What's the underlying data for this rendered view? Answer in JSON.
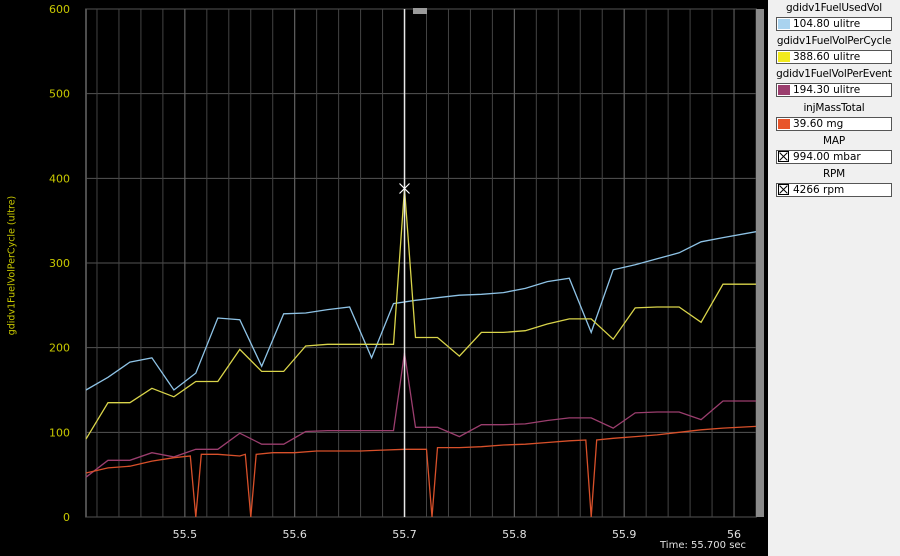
{
  "chart_data": {
    "type": "line",
    "ylabel": "gdidv1FuelVolPerCycle (ultre)",
    "ylim": [
      0,
      600
    ],
    "xlim": [
      55.41,
      56.02
    ],
    "y_ticks": [
      0,
      100,
      200,
      300,
      400,
      500,
      600
    ],
    "x_ticks": [
      55.5,
      55.6,
      55.7,
      55.8,
      55.9,
      56
    ],
    "x_tick_labels": [
      "55.5",
      "55.6",
      "55.7",
      "55.8",
      "55.9",
      "56"
    ],
    "grid": true,
    "cursor_x": 55.7,
    "time_readout": "Time: 55.700 sec",
    "series": [
      {
        "name": "gdidv1FuelUsedVol",
        "color": "#8ec3e6",
        "x": [
          55.41,
          55.43,
          55.45,
          55.47,
          55.49,
          55.51,
          55.53,
          55.55,
          55.57,
          55.59,
          55.61,
          55.63,
          55.65,
          55.67,
          55.69,
          55.71,
          55.73,
          55.75,
          55.77,
          55.79,
          55.81,
          55.83,
          55.85,
          55.87,
          55.89,
          55.91,
          55.93,
          55.95,
          55.97,
          55.99,
          56.02
        ],
        "y": [
          150,
          165,
          183,
          188,
          150,
          170,
          235,
          233,
          178,
          240,
          241,
          245,
          248,
          188,
          252,
          256,
          259,
          262,
          263,
          265,
          270,
          278,
          282,
          218,
          292,
          298,
          305,
          312,
          325,
          330,
          337
        ]
      },
      {
        "name": "gdidv1FuelVolPerCycle",
        "color": "#d9d44a",
        "x": [
          55.41,
          55.43,
          55.45,
          55.47,
          55.49,
          55.51,
          55.53,
          55.55,
          55.57,
          55.59,
          55.61,
          55.63,
          55.65,
          55.67,
          55.69,
          55.7,
          55.71,
          55.73,
          55.75,
          55.77,
          55.79,
          55.81,
          55.83,
          55.85,
          55.87,
          55.89,
          55.91,
          55.93,
          55.95,
          55.97,
          55.99,
          56.02
        ],
        "y": [
          92,
          135,
          135,
          152,
          142,
          160,
          160,
          198,
          172,
          172,
          202,
          204,
          204,
          204,
          204,
          388,
          212,
          212,
          190,
          218,
          218,
          220,
          228,
          234,
          234,
          210,
          247,
          248,
          248,
          230,
          275,
          275
        ]
      },
      {
        "name": "gdidv1FuelVolPerEvent",
        "color": "#9b3e6e",
        "x": [
          55.41,
          55.43,
          55.45,
          55.47,
          55.49,
          55.51,
          55.53,
          55.55,
          55.57,
          55.59,
          55.61,
          55.63,
          55.65,
          55.67,
          55.69,
          55.7,
          55.71,
          55.73,
          55.75,
          55.77,
          55.79,
          55.81,
          55.83,
          55.85,
          55.87,
          55.89,
          55.91,
          55.93,
          55.95,
          55.97,
          55.99,
          56.02
        ],
        "y": [
          47,
          67,
          67,
          76,
          71,
          80,
          80,
          99,
          86,
          86,
          101,
          102,
          102,
          102,
          102,
          194,
          106,
          106,
          95,
          109,
          109,
          110,
          114,
          117,
          117,
          105,
          123,
          124,
          124,
          115,
          137,
          137
        ]
      },
      {
        "name": "injMassTotal",
        "color": "#d8502a",
        "x": [
          55.41,
          55.43,
          55.45,
          55.47,
          55.49,
          55.505,
          55.51,
          55.515,
          55.53,
          55.55,
          55.555,
          55.56,
          55.565,
          55.58,
          55.6,
          55.62,
          55.64,
          55.66,
          55.68,
          55.7,
          55.72,
          55.725,
          55.73,
          55.735,
          55.75,
          55.77,
          55.79,
          55.81,
          55.83,
          55.85,
          55.865,
          55.87,
          55.875,
          55.89,
          55.91,
          55.93,
          55.95,
          55.97,
          55.99,
          56.02
        ],
        "y": [
          52,
          58,
          60,
          66,
          70,
          72,
          0,
          74,
          74,
          72,
          74,
          0,
          74,
          76,
          76,
          78,
          78,
          78,
          79,
          80,
          80,
          0,
          82,
          82,
          82,
          83,
          85,
          86,
          88,
          90,
          91,
          0,
          91,
          93,
          95,
          97,
          100,
          103,
          105,
          107
        ]
      }
    ]
  },
  "legend": [
    {
      "name": "gdidv1FuelUsedVol",
      "value": "104.80 ulitre",
      "color": "#a9d3ef",
      "marker": "swatch"
    },
    {
      "name": "gdidv1FuelVolPerCycle",
      "value": "388.60 ulitre",
      "color": "#f2ea1c",
      "marker": "swatch"
    },
    {
      "name": "gdidv1FuelVolPerEvent",
      "value": "194.30 ulitre",
      "color": "#9b3e6e",
      "marker": "swatch"
    },
    {
      "name": "injMassTotal",
      "value": "39.60 mg",
      "color": "#e8542a",
      "marker": "swatch"
    },
    {
      "name": "MAP",
      "value": "994.00 mbar",
      "color": "",
      "marker": "x"
    },
    {
      "name": "RPM",
      "value": "4266 rpm",
      "color": "",
      "marker": "x"
    }
  ]
}
